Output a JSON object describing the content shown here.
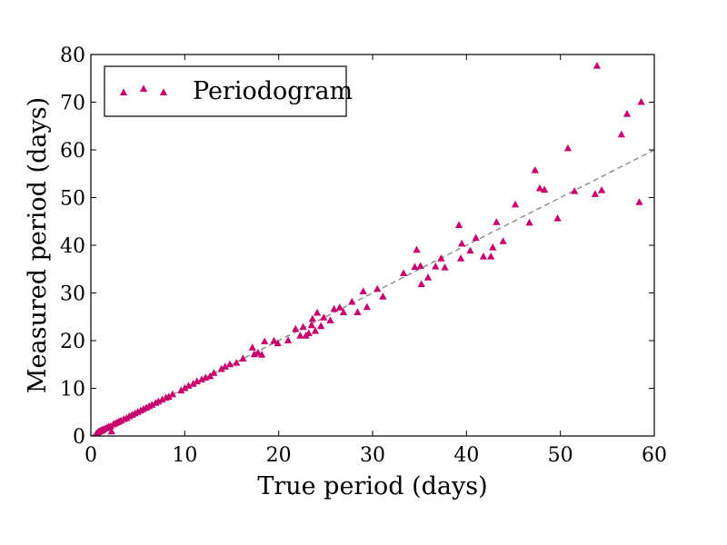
{
  "chart_data": {
    "type": "scatter",
    "xlabel": "True period (days)",
    "ylabel": "Measured period (days)",
    "xlim": [
      0,
      60
    ],
    "ylim": [
      0,
      80
    ],
    "x_ticks": [
      0,
      10,
      20,
      30,
      40,
      50,
      60
    ],
    "y_ticks": [
      0,
      10,
      20,
      30,
      40,
      50,
      60,
      70,
      80
    ],
    "x_tick_labels": [
      "0",
      "10",
      "20",
      "30",
      "40",
      "50",
      "60"
    ],
    "y_tick_labels": [
      "0",
      "10",
      "20",
      "30",
      "40",
      "50",
      "60",
      "70",
      "80"
    ],
    "grid": false,
    "legend": {
      "placement": "top-left",
      "entries": [
        "Periodogram"
      ]
    },
    "reference_line": {
      "style": "dashed",
      "color": "#808080",
      "x": [
        0,
        60
      ],
      "y": [
        0,
        60
      ]
    },
    "series": [
      {
        "name": "Periodogram",
        "marker": "triangle",
        "color": "#C8006E",
        "points": [
          [
            0.6,
            0.5
          ],
          [
            0.7,
            0.6
          ],
          [
            0.8,
            0.8
          ],
          [
            0.9,
            0.9
          ],
          [
            1.0,
            1.0
          ],
          [
            1.1,
            1.1
          ],
          [
            1.2,
            1.2
          ],
          [
            1.3,
            1.3
          ],
          [
            1.5,
            1.5
          ],
          [
            1.7,
            1.7
          ],
          [
            1.9,
            1.9
          ],
          [
            2.1,
            2.0
          ],
          [
            2.2,
            0.9
          ],
          [
            2.4,
            2.4
          ],
          [
            2.6,
            2.6
          ],
          [
            2.8,
            2.8
          ],
          [
            3.0,
            3.0
          ],
          [
            3.2,
            3.2
          ],
          [
            3.5,
            3.5
          ],
          [
            3.8,
            3.7
          ],
          [
            4.1,
            4.1
          ],
          [
            4.4,
            4.4
          ],
          [
            4.7,
            4.7
          ],
          [
            5.0,
            5.0
          ],
          [
            5.3,
            5.3
          ],
          [
            5.6,
            5.6
          ],
          [
            5.9,
            5.9
          ],
          [
            6.2,
            6.2
          ],
          [
            6.5,
            6.5
          ],
          [
            6.9,
            6.9
          ],
          [
            7.2,
            7.2
          ],
          [
            7.6,
            7.6
          ],
          [
            8.0,
            8.0
          ],
          [
            8.3,
            8.2
          ],
          [
            8.7,
            8.7
          ],
          [
            9.6,
            9.5
          ],
          [
            10.0,
            10.0
          ],
          [
            10.4,
            10.5
          ],
          [
            10.9,
            10.9
          ],
          [
            11.3,
            11.4
          ],
          [
            11.8,
            11.8
          ],
          [
            12.2,
            12.2
          ],
          [
            12.7,
            12.5
          ],
          [
            13.1,
            13.2
          ],
          [
            13.9,
            14.0
          ],
          [
            14.3,
            14.5
          ],
          [
            14.8,
            15.0
          ],
          [
            15.5,
            15.3
          ],
          [
            16.2,
            16.2
          ],
          [
            17.2,
            18.5
          ],
          [
            17.4,
            17.1
          ],
          [
            17.8,
            17.4
          ],
          [
            18.2,
            17.0
          ],
          [
            18.5,
            19.8
          ],
          [
            19.5,
            19.9
          ],
          [
            19.9,
            19.4
          ],
          [
            21.0,
            20.0
          ],
          [
            21.8,
            22.4
          ],
          [
            22.3,
            21.0
          ],
          [
            22.6,
            22.8
          ],
          [
            22.9,
            21.0
          ],
          [
            23.2,
            21.5
          ],
          [
            23.5,
            23.2
          ],
          [
            23.6,
            24.5
          ],
          [
            23.9,
            22.0
          ],
          [
            24.1,
            25.8
          ],
          [
            24.5,
            23.0
          ],
          [
            24.8,
            24.8
          ],
          [
            25.5,
            24.2
          ],
          [
            25.9,
            26.6
          ],
          [
            26.5,
            26.9
          ],
          [
            26.9,
            25.9
          ],
          [
            27.8,
            28.1
          ],
          [
            28.4,
            25.9
          ],
          [
            29.0,
            30.3
          ],
          [
            29.4,
            27.0
          ],
          [
            30.5,
            30.8
          ],
          [
            31.1,
            29.2
          ],
          [
            33.3,
            34.1
          ],
          [
            34.5,
            35.4
          ],
          [
            34.7,
            39.0
          ],
          [
            35.1,
            35.6
          ],
          [
            35.2,
            31.8
          ],
          [
            35.9,
            33.2
          ],
          [
            36.7,
            35.5
          ],
          [
            37.3,
            37.2
          ],
          [
            37.7,
            35.3
          ],
          [
            39.2,
            44.2
          ],
          [
            39.4,
            37.2
          ],
          [
            39.5,
            40.3
          ],
          [
            40.4,
            38.8
          ],
          [
            41.0,
            41.5
          ],
          [
            41.8,
            37.6
          ],
          [
            42.6,
            37.6
          ],
          [
            42.8,
            39.5
          ],
          [
            43.2,
            44.8
          ],
          [
            43.9,
            40.8
          ],
          [
            45.2,
            48.5
          ],
          [
            46.7,
            44.7
          ],
          [
            47.3,
            55.7
          ],
          [
            47.8,
            51.9
          ],
          [
            48.3,
            51.6
          ],
          [
            49.7,
            45.6
          ],
          [
            50.8,
            60.3
          ],
          [
            51.5,
            51.3
          ],
          [
            53.7,
            50.7
          ],
          [
            53.9,
            77.6
          ],
          [
            54.4,
            51.5
          ],
          [
            56.5,
            63.2
          ],
          [
            57.1,
            67.5
          ],
          [
            58.4,
            49.0
          ],
          [
            58.6,
            70.0
          ]
        ]
      }
    ]
  }
}
